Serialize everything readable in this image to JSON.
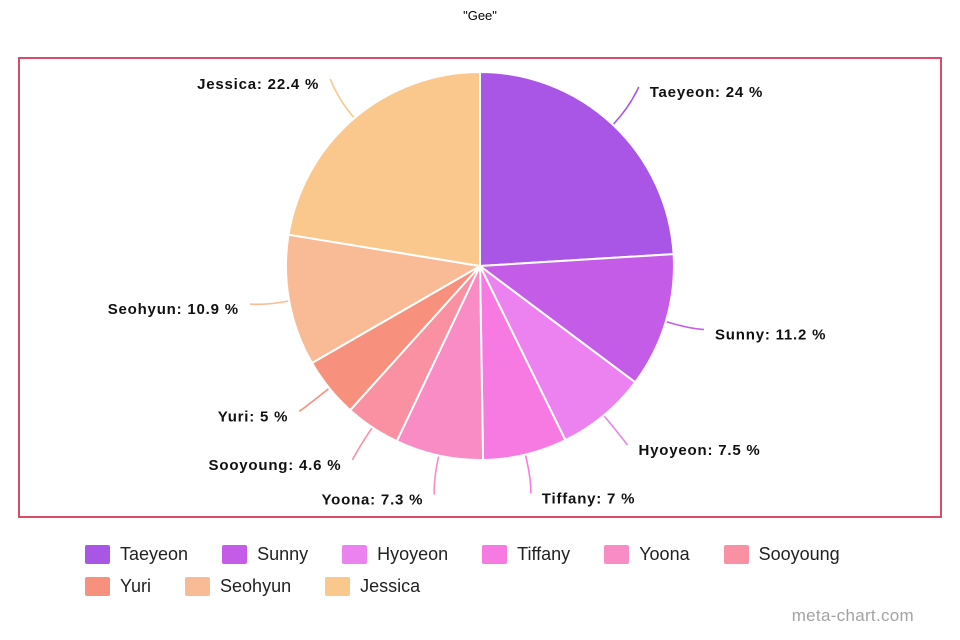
{
  "title": "\"Gee\"",
  "watermark": "meta-chart.com",
  "frame": {
    "border_color": "#dc4a68"
  },
  "chart_data": {
    "type": "pie",
    "title": "\"Gee\"",
    "unit": "%",
    "direction": "clockwise",
    "start_angle_deg": 0,
    "legend_position": "bottom",
    "slices": [
      {
        "label": "Taeyeon",
        "value": 24,
        "label_text": "Taeyeon: 24 %",
        "color": "#a955e6"
      },
      {
        "label": "Sunny",
        "value": 11.2,
        "label_text": "Sunny: 11.2 %",
        "color": "#c55ce8"
      },
      {
        "label": "Hyoyeon",
        "value": 7.5,
        "label_text": "Hyoyeon: 7.5 %",
        "color": "#ec82f0"
      },
      {
        "label": "Tiffany",
        "value": 7,
        "label_text": "Tiffany: 7 %",
        "color": "#f779e2"
      },
      {
        "label": "Yoona",
        "value": 7.3,
        "label_text": "Yoona: 7.3 %",
        "color": "#fa8cc5"
      },
      {
        "label": "Sooyoung",
        "value": 4.6,
        "label_text": "Sooyoung: 4.6 %",
        "color": "#f991a2"
      },
      {
        "label": "Yuri",
        "value": 5,
        "label_text": "Yuri: 5 %",
        "color": "#f7907c"
      },
      {
        "label": "Seohyun",
        "value": 10.9,
        "label_text": "Seohyun: 10.9 %",
        "color": "#f8bb96"
      },
      {
        "label": "Jessica",
        "value": 22.4,
        "label_text": "Jessica: 22.4 %",
        "color": "#fac88c"
      }
    ]
  },
  "legend": {
    "rows": [
      [
        "Taeyeon",
        "Sunny",
        "Hyoyeon",
        "Tiffany",
        "Yoona",
        "Sooyoung"
      ],
      [
        "Yuri",
        "Seohyun",
        "Jessica"
      ]
    ]
  }
}
